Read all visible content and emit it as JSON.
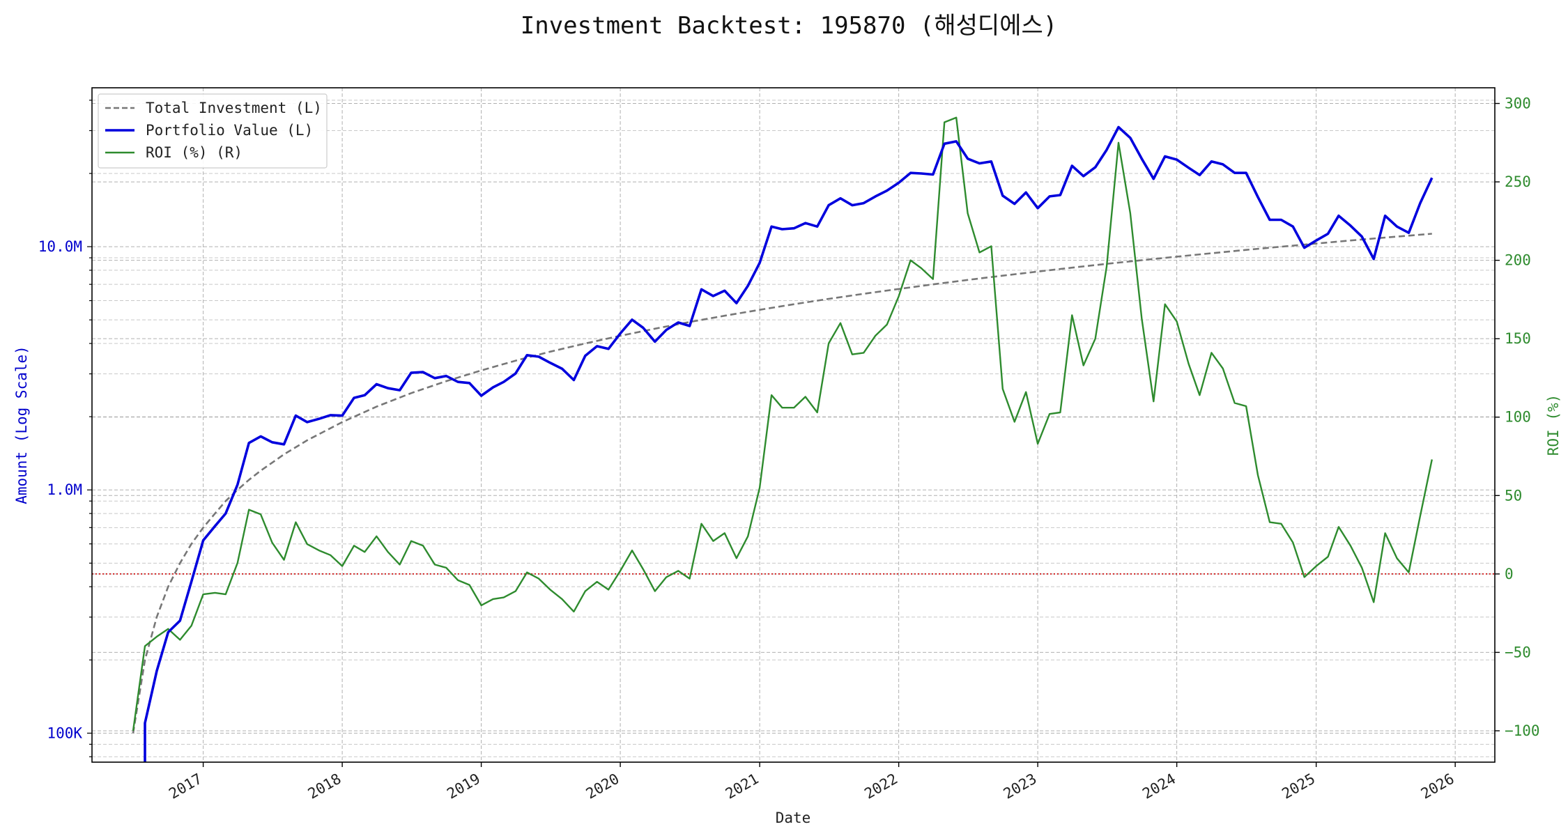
{
  "chart_data": {
    "type": "line",
    "title": "Investment Backtest: 195870 (해성디에스)",
    "xlabel": "Date",
    "ylabel_left": "Amount (Log Scale)",
    "ylabel_right": "ROI (%)",
    "y_left_scale": "log",
    "y_left_range": [
      76000,
      45000000
    ],
    "y_right_range": [
      -120,
      310
    ],
    "x_range": [
      "2016-03-15",
      "2026-04-15"
    ],
    "grid": true,
    "legend_position": "top-left",
    "x_ticks": [
      {
        "value": "2017-01-01",
        "label": "2017"
      },
      {
        "value": "2018-01-01",
        "label": "2018"
      },
      {
        "value": "2019-01-01",
        "label": "2019"
      },
      {
        "value": "2020-01-01",
        "label": "2020"
      },
      {
        "value": "2021-01-01",
        "label": "2021"
      },
      {
        "value": "2022-01-01",
        "label": "2022"
      },
      {
        "value": "2023-01-01",
        "label": "2023"
      },
      {
        "value": "2024-01-01",
        "label": "2024"
      },
      {
        "value": "2025-01-01",
        "label": "2025"
      },
      {
        "value": "2026-01-01",
        "label": "2026"
      }
    ],
    "y_left_ticks": [
      {
        "value": 100000,
        "label": "100K"
      },
      {
        "value": 1000000,
        "label": "1.0M"
      },
      {
        "value": 10000000,
        "label": "10.0M"
      }
    ],
    "y_right_ticks": [
      {
        "value": -100,
        "label": "−100"
      },
      {
        "value": -50,
        "label": "−50"
      },
      {
        "value": 0,
        "label": "0"
      },
      {
        "value": 50,
        "label": "50"
      },
      {
        "value": 100,
        "label": "100"
      },
      {
        "value": 150,
        "label": "150"
      },
      {
        "value": 200,
        "label": "200"
      },
      {
        "value": 250,
        "label": "250"
      },
      {
        "value": 300,
        "label": "300"
      }
    ],
    "reference_line": {
      "axis": "right",
      "value": 0,
      "color": "#cc0000"
    },
    "series": [
      {
        "name": "Total Investment (L)",
        "axis": "left",
        "color": "#777777",
        "style": "dashed",
        "x": [
          "2016-07-01",
          "2016-08-01",
          "2016-09-01",
          "2016-10-01",
          "2016-11-01",
          "2016-12-01",
          "2017-01-01",
          "2017-02-01",
          "2017-03-01",
          "2017-04-01",
          "2017-05-01",
          "2017-06-01",
          "2017-08-01",
          "2017-10-01",
          "2018-01-01",
          "2018-04-01",
          "2018-07-01",
          "2018-10-01",
          "2019-01-01",
          "2019-04-01",
          "2019-07-01",
          "2019-10-01",
          "2020-01-01",
          "2020-04-01",
          "2020-07-01",
          "2020-10-01",
          "2021-01-01",
          "2021-04-01",
          "2021-07-01",
          "2021-10-01",
          "2022-01-01",
          "2022-04-01",
          "2022-07-01",
          "2022-10-01",
          "2023-01-01",
          "2023-04-01",
          "2023-07-01",
          "2023-10-01",
          "2024-01-01",
          "2024-04-01",
          "2024-07-01",
          "2024-10-01",
          "2025-01-01",
          "2025-04-01",
          "2025-07-01",
          "2025-11-01"
        ],
        "values": [
          100000,
          200000,
          300000,
          400000,
          500000,
          600000,
          700000,
          800000,
          900000,
          1000000,
          1100000,
          1200000,
          1400000,
          1600000,
          1900000,
          2200000,
          2500000,
          2800000,
          3100000,
          3400000,
          3700000,
          4000000,
          4300000,
          4600000,
          4900000,
          5200000,
          5500000,
          5800000,
          6100000,
          6400000,
          6700000,
          7000000,
          7300000,
          7600000,
          7900000,
          8200000,
          8500000,
          8800000,
          9100000,
          9400000,
          9700000,
          10000000,
          10300000,
          10600000,
          10900000,
          11300000
        ]
      },
      {
        "name": "Portfolio Value (L)",
        "axis": "left",
        "color": "#0000dd",
        "style": "solid",
        "x": [
          "2016-08-01",
          "2016-08-01",
          "2016-09-01",
          "2016-10-01",
          "2016-11-01",
          "2016-12-01",
          "2017-01-01",
          "2017-02-01",
          "2017-03-01",
          "2017-04-01",
          "2017-05-01",
          "2017-06-01",
          "2017-07-01",
          "2017-08-01",
          "2017-09-01",
          "2017-10-01",
          "2017-11-01",
          "2017-12-01",
          "2018-01-01",
          "2018-02-01",
          "2018-03-01",
          "2018-04-01",
          "2018-05-01",
          "2018-06-01",
          "2018-07-01",
          "2018-08-01",
          "2018-09-01",
          "2018-10-01",
          "2018-11-01",
          "2018-12-01",
          "2019-01-01",
          "2019-02-01",
          "2019-03-01",
          "2019-04-01",
          "2019-05-01",
          "2019-06-01",
          "2019-07-01",
          "2019-08-01",
          "2019-09-01",
          "2019-10-01",
          "2019-11-01",
          "2019-12-01",
          "2020-01-01",
          "2020-02-01",
          "2020-03-01",
          "2020-04-01",
          "2020-05-01",
          "2020-06-01",
          "2020-07-01",
          "2020-08-01",
          "2020-09-01",
          "2020-10-01",
          "2020-11-01",
          "2020-12-01",
          "2021-01-01",
          "2021-02-01",
          "2021-03-01",
          "2021-04-01",
          "2021-05-01",
          "2021-06-01",
          "2021-07-01",
          "2021-08-01",
          "2021-09-01",
          "2021-10-01",
          "2021-11-01",
          "2021-12-01",
          "2022-01-01",
          "2022-02-01",
          "2022-03-01",
          "2022-04-01",
          "2022-05-01",
          "2022-06-01",
          "2022-07-01",
          "2022-08-01",
          "2022-09-01",
          "2022-10-01",
          "2022-11-01",
          "2022-12-01",
          "2023-01-01",
          "2023-02-01",
          "2023-03-01",
          "2023-04-01",
          "2023-05-01",
          "2023-06-01",
          "2023-07-01",
          "2023-08-01",
          "2023-09-01",
          "2023-10-01",
          "2023-11-01",
          "2023-12-01",
          "2024-01-01",
          "2024-02-01",
          "2024-03-01",
          "2024-04-01",
          "2024-05-01",
          "2024-06-01",
          "2024-07-01",
          "2024-08-01",
          "2024-09-01",
          "2024-10-01",
          "2024-11-01",
          "2024-12-01",
          "2025-01-01",
          "2025-02-01",
          "2025-03-01",
          "2025-04-01",
          "2025-05-01",
          "2025-06-01",
          "2025-07-01",
          "2025-08-01",
          "2025-09-01",
          "2025-10-01",
          "2025-11-01"
        ],
        "values": [
          60000,
          110000,
          180000,
          260000,
          290000,
          420000,
          620000,
          710000,
          800000,
          1050000,
          1560000,
          1660000,
          1570000,
          1540000,
          2020000,
          1900000,
          1960000,
          2030000,
          2020000,
          2390000,
          2450000,
          2720000,
          2620000,
          2570000,
          3030000,
          3050000,
          2880000,
          2940000,
          2780000,
          2750000,
          2440000,
          2640000,
          2780000,
          3010000,
          3580000,
          3530000,
          3330000,
          3150000,
          2830000,
          3560000,
          3900000,
          3800000,
          4400000,
          5010000,
          4640000,
          4070000,
          4550000,
          4880000,
          4720000,
          6680000,
          6270000,
          6590000,
          5860000,
          6900000,
          8580000,
          12100000,
          11800000,
          11900000,
          12500000,
          12100000,
          14800000,
          15800000,
          14800000,
          15100000,
          16100000,
          17000000,
          18300000,
          20100000,
          20000000,
          19800000,
          26500000,
          27100000,
          23000000,
          22000000,
          22400000,
          16200000,
          15000000,
          16700000,
          14400000,
          16100000,
          16300000,
          21500000,
          19500000,
          21200000,
          25000000,
          31000000,
          28000000,
          23000000,
          19000000,
          23500000,
          22800000,
          21100000,
          19700000,
          22400000,
          21800000,
          20100000,
          20100000,
          16000000,
          12900000,
          12900000,
          12100000,
          9900000,
          10600000,
          11300000,
          13400000,
          12200000,
          11000000,
          8900000,
          13400000,
          12100000,
          11400000,
          15100000,
          19200000
        ]
      },
      {
        "name": "ROI (%) (R)",
        "axis": "right",
        "color": "#2e8b2e",
        "style": "solid",
        "x": [
          "2016-07-01",
          "2016-08-01",
          "2016-09-01",
          "2016-10-01",
          "2016-11-01",
          "2016-12-01",
          "2017-01-01",
          "2017-02-01",
          "2017-03-01",
          "2017-04-01",
          "2017-05-01",
          "2017-06-01",
          "2017-07-01",
          "2017-08-01",
          "2017-09-01",
          "2017-10-01",
          "2017-11-01",
          "2017-12-01",
          "2018-01-01",
          "2018-02-01",
          "2018-03-01",
          "2018-04-01",
          "2018-05-01",
          "2018-06-01",
          "2018-07-01",
          "2018-08-01",
          "2018-09-01",
          "2018-10-01",
          "2018-11-01",
          "2018-12-01",
          "2019-01-01",
          "2019-02-01",
          "2019-03-01",
          "2019-04-01",
          "2019-05-01",
          "2019-06-01",
          "2019-07-01",
          "2019-08-01",
          "2019-09-01",
          "2019-10-01",
          "2019-11-01",
          "2019-12-01",
          "2020-01-01",
          "2020-02-01",
          "2020-03-01",
          "2020-04-01",
          "2020-05-01",
          "2020-06-01",
          "2020-07-01",
          "2020-08-01",
          "2020-09-01",
          "2020-10-01",
          "2020-11-01",
          "2020-12-01",
          "2021-01-01",
          "2021-02-01",
          "2021-03-01",
          "2021-04-01",
          "2021-05-01",
          "2021-06-01",
          "2021-07-01",
          "2021-08-01",
          "2021-09-01",
          "2021-10-01",
          "2021-11-01",
          "2021-12-01",
          "2022-01-01",
          "2022-02-01",
          "2022-03-01",
          "2022-04-01",
          "2022-05-01",
          "2022-06-01",
          "2022-07-01",
          "2022-08-01",
          "2022-09-01",
          "2022-10-01",
          "2022-11-01",
          "2022-12-01",
          "2023-01-01",
          "2023-02-01",
          "2023-03-01",
          "2023-04-01",
          "2023-05-01",
          "2023-06-01",
          "2023-07-01",
          "2023-08-01",
          "2023-09-01",
          "2023-10-01",
          "2023-11-01",
          "2023-12-01",
          "2024-01-01",
          "2024-02-01",
          "2024-03-01",
          "2024-04-01",
          "2024-05-01",
          "2024-06-01",
          "2024-07-01",
          "2024-08-01",
          "2024-09-01",
          "2024-10-01",
          "2024-11-01",
          "2024-12-01",
          "2025-01-01",
          "2025-02-01",
          "2025-03-01",
          "2025-04-01",
          "2025-05-01",
          "2025-06-01",
          "2025-07-01",
          "2025-08-01",
          "2025-09-01",
          "2025-10-01",
          "2025-11-01"
        ],
        "values": [
          -100,
          -46,
          -40,
          -35,
          -42,
          -33,
          -13,
          -12,
          -13,
          7,
          41,
          38,
          20,
          9,
          33,
          19,
          15,
          12,
          5,
          18,
          14,
          24,
          14,
          6,
          21,
          18,
          6,
          4,
          -4,
          -7,
          -20,
          -16,
          -15,
          -11,
          1,
          -3,
          -10,
          -16,
          -24,
          -11,
          -5,
          -10,
          2,
          15,
          3,
          -11,
          -2,
          2,
          -3,
          32,
          21,
          26,
          10,
          24,
          55,
          114,
          106,
          106,
          113,
          103,
          147,
          160,
          140,
          141,
          152,
          159,
          177,
          200,
          195,
          188,
          288,
          291,
          230,
          205,
          209,
          118,
          97,
          116,
          83,
          102,
          103,
          165,
          133,
          150,
          196,
          275,
          230,
          163,
          110,
          172,
          161,
          134,
          114,
          141,
          131,
          109,
          107,
          63,
          33,
          32,
          20,
          -2,
          5,
          11,
          30,
          18,
          4,
          -18,
          26,
          10,
          1,
          37,
          73
        ]
      }
    ]
  }
}
